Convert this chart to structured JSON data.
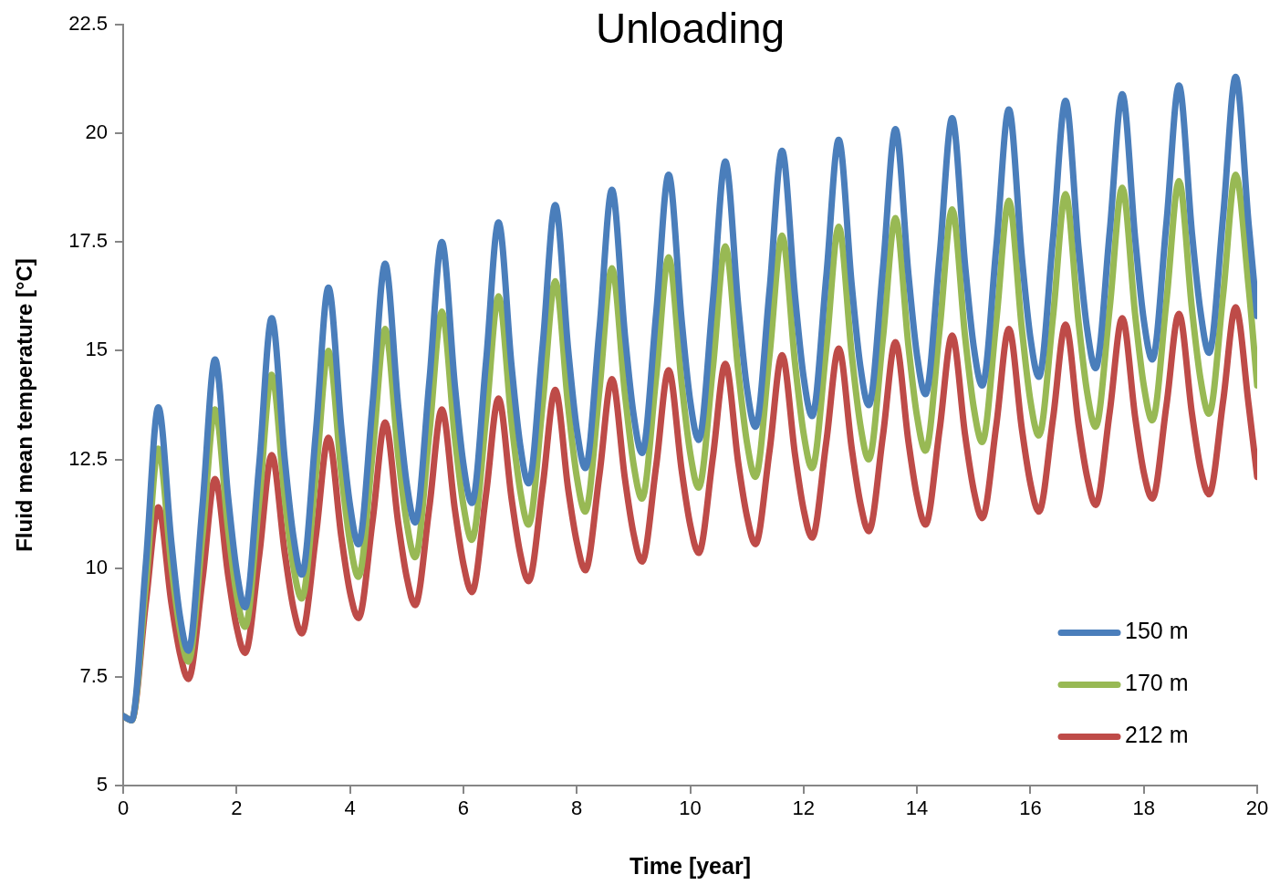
{
  "chart_data": {
    "type": "line",
    "title": "Unloading",
    "xlabel": "Time [year]",
    "ylabel": "Fluid mean temperature [°C]",
    "x": [
      0,
      0.15,
      0.4,
      0.62,
      0.85,
      1,
      1.15,
      1.4,
      1.62,
      1.85,
      2,
      2.15,
      2.4,
      2.62,
      2.85,
      3,
      3.15,
      3.4,
      3.62,
      3.85,
      4,
      4.15,
      4.4,
      4.62,
      4.85,
      5,
      5.15,
      5.4,
      5.62,
      5.85,
      6,
      6.15,
      6.4,
      6.62,
      6.85,
      7,
      7.15,
      7.4,
      7.62,
      7.85,
      8,
      8.15,
      8.4,
      8.62,
      8.85,
      9,
      9.15,
      9.4,
      9.62,
      9.85,
      10,
      10.15,
      10.4,
      10.62,
      10.85,
      11,
      11.15,
      11.4,
      11.62,
      11.85,
      12,
      12.15,
      12.4,
      12.62,
      12.85,
      13,
      13.15,
      13.4,
      13.62,
      13.85,
      14,
      14.15,
      14.4,
      14.62,
      14.85,
      15,
      15.15,
      15.4,
      15.62,
      15.85,
      16,
      16.15,
      16.4,
      16.62,
      16.85,
      17,
      17.15,
      17.4,
      17.62,
      17.85,
      18,
      18.15,
      18.4,
      18.62,
      18.85,
      19,
      19.15,
      19.4,
      19.62,
      19.85,
      20
    ],
    "series": [
      {
        "name": "150 m",
        "color": "#4a7ebb",
        "values": [
          6.6,
          6.5,
          10.1,
          13.7,
          10.6,
          8.9,
          8.1,
          11.45,
          14.8,
          11.65,
          9.95,
          9.1,
          12.4,
          15.75,
          12.5,
          10.75,
          9.85,
          13.15,
          16.45,
          13.2,
          11.45,
          10.55,
          13.8,
          17.0,
          13.75,
          11.95,
          11.05,
          14.3,
          17.5,
          14.2,
          12.4,
          11.5,
          14.75,
          17.95,
          14.65,
          12.85,
          11.95,
          15.15,
          18.35,
          15.0,
          13.2,
          12.3,
          15.5,
          18.7,
          15.35,
          13.55,
          12.65,
          15.85,
          19.05,
          15.7,
          13.85,
          12.95,
          16.15,
          19.35,
          16.0,
          14.15,
          13.25,
          16.4,
          19.6,
          16.25,
          14.4,
          13.5,
          16.7,
          19.85,
          16.5,
          14.65,
          13.75,
          16.9,
          20.1,
          16.75,
          14.9,
          14.0,
          17.2,
          20.35,
          16.95,
          15.1,
          14.2,
          17.4,
          20.55,
          17.15,
          15.3,
          14.4,
          17.6,
          20.75,
          17.35,
          15.5,
          14.6,
          17.75,
          20.9,
          17.55,
          15.7,
          14.8,
          17.95,
          21.1,
          17.7,
          15.9,
          14.95,
          18.1,
          21.3,
          17.9,
          15.8
        ]
      },
      {
        "name": "170 m",
        "color": "#98b954",
        "values": [
          6.6,
          6.5,
          9.6,
          12.75,
          10.05,
          8.6,
          7.85,
          10.75,
          13.65,
          10.9,
          9.4,
          8.65,
          11.55,
          14.45,
          11.6,
          10.05,
          9.3,
          12.15,
          15.0,
          12.15,
          10.6,
          9.8,
          12.65,
          15.5,
          12.6,
          11.05,
          10.25,
          13.1,
          15.9,
          13.0,
          11.45,
          10.65,
          13.45,
          16.25,
          13.35,
          11.8,
          11.0,
          13.8,
          16.6,
          13.7,
          12.1,
          11.3,
          14.1,
          16.9,
          14.0,
          12.4,
          11.6,
          14.4,
          17.15,
          14.25,
          12.65,
          11.85,
          14.6,
          17.4,
          14.5,
          12.9,
          12.1,
          14.9,
          17.65,
          14.7,
          13.1,
          12.3,
          15.05,
          17.85,
          14.9,
          13.3,
          12.5,
          15.3,
          18.05,
          15.1,
          13.5,
          12.7,
          15.5,
          18.25,
          15.3,
          13.7,
          12.9,
          15.7,
          18.45,
          15.5,
          13.85,
          13.05,
          15.8,
          18.6,
          15.65,
          14.05,
          13.25,
          16.0,
          18.75,
          15.8,
          14.2,
          13.4,
          16.15,
          18.9,
          15.95,
          14.35,
          13.55,
          16.3,
          19.05,
          16.45,
          14.2
        ]
      },
      {
        "name": "212 m",
        "color": "#be4b48",
        "values": [
          6.6,
          6.5,
          9.2,
          11.4,
          9.2,
          8.05,
          7.45,
          9.75,
          12.05,
          9.85,
          8.65,
          8.05,
          10.3,
          12.6,
          10.35,
          9.1,
          8.5,
          10.75,
          13.0,
          10.7,
          9.45,
          8.85,
          11.1,
          13.35,
          11.05,
          9.8,
          9.15,
          11.4,
          13.65,
          11.35,
          10.1,
          9.45,
          11.7,
          13.9,
          11.6,
          10.35,
          9.7,
          11.9,
          14.1,
          11.8,
          10.6,
          9.95,
          12.15,
          14.35,
          12.05,
          10.8,
          10.15,
          12.35,
          14.55,
          12.25,
          11.0,
          10.35,
          12.55,
          14.7,
          12.4,
          11.2,
          10.55,
          12.7,
          14.9,
          12.6,
          11.35,
          10.7,
          12.9,
          15.05,
          12.75,
          11.5,
          10.85,
          13.05,
          15.2,
          12.9,
          11.65,
          11.0,
          13.2,
          15.35,
          13.05,
          11.8,
          11.15,
          13.3,
          15.5,
          13.2,
          11.95,
          11.3,
          13.45,
          15.6,
          13.3,
          12.1,
          11.45,
          13.6,
          15.75,
          13.45,
          12.2,
          11.6,
          13.75,
          15.85,
          13.55,
          12.3,
          11.7,
          13.85,
          16.0,
          13.75,
          12.1
        ]
      }
    ],
    "xlim": [
      0,
      20
    ],
    "xticks": [
      0,
      2,
      4,
      6,
      8,
      10,
      12,
      14,
      16,
      18,
      20
    ],
    "ylim": [
      5,
      22.5
    ],
    "yticks": [
      5,
      7.5,
      10,
      12.5,
      15,
      17.5,
      20,
      22.5
    ],
    "grid": false,
    "legend": "bottom right",
    "marker": "none",
    "line_style": "solid"
  }
}
